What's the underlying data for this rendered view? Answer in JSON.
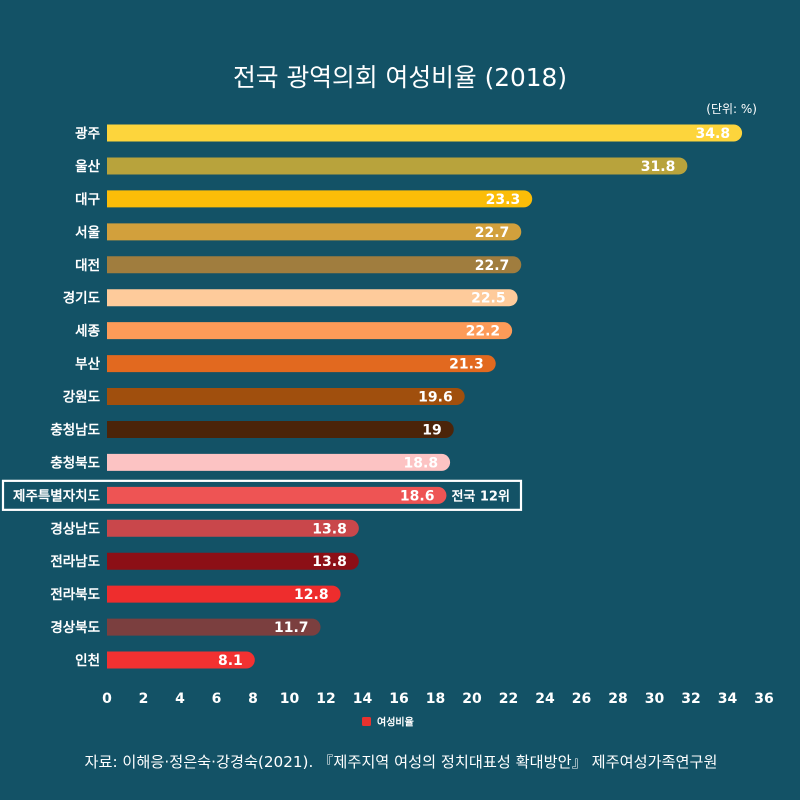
{
  "colors": {
    "background": "#135266",
    "text": "#ffffff",
    "highlight_border": "#ffffff"
  },
  "chart_data": {
    "type": "bar",
    "orientation": "horizontal",
    "title": "전국 광역의회 여성비율 (2018)",
    "unit_label": "(단위: %)",
    "xlabel": "",
    "ylabel": "",
    "categories": [
      "광주",
      "울산",
      "대구",
      "서울",
      "대전",
      "경기도",
      "세종",
      "부산",
      "강원도",
      "충청남도",
      "충청북도",
      "제주특별자치도",
      "경상남도",
      "전라남도",
      "전라북도",
      "경상북도",
      "인천"
    ],
    "values": [
      34.8,
      31.8,
      23.3,
      22.7,
      22.7,
      22.5,
      22.2,
      21.3,
      19.6,
      19,
      18.8,
      18.6,
      13.8,
      13.8,
      12.8,
      11.7,
      8.1
    ],
    "colors": [
      "#fdd53c",
      "#b8a33c",
      "#fbbd08",
      "#d2a03c",
      "#a07d3e",
      "#fecb9b",
      "#fd9b58",
      "#e2691f",
      "#a04f0d",
      "#4b2409",
      "#fcc3c3",
      "#ee5454",
      "#c9474b",
      "#8c0f16",
      "#ee2d2d",
      "#7b3f3f",
      "#f33131"
    ],
    "xlim": [
      0,
      36
    ],
    "xticks": [
      0,
      2,
      4,
      6,
      8,
      10,
      12,
      14,
      16,
      18,
      20,
      22,
      24,
      26,
      28,
      30,
      32,
      34,
      36
    ],
    "grid": false,
    "legend": {
      "label": "여성비율",
      "color": "#e8322f",
      "position": "bottom-center"
    },
    "highlight": {
      "category_index": 11,
      "annotation": "전국 12위"
    },
    "source": "자료: 이해응·정은숙·강경숙(2021). 『제주지역 여성의 정치대표성 확대방안』 제주여성가족연구원"
  }
}
